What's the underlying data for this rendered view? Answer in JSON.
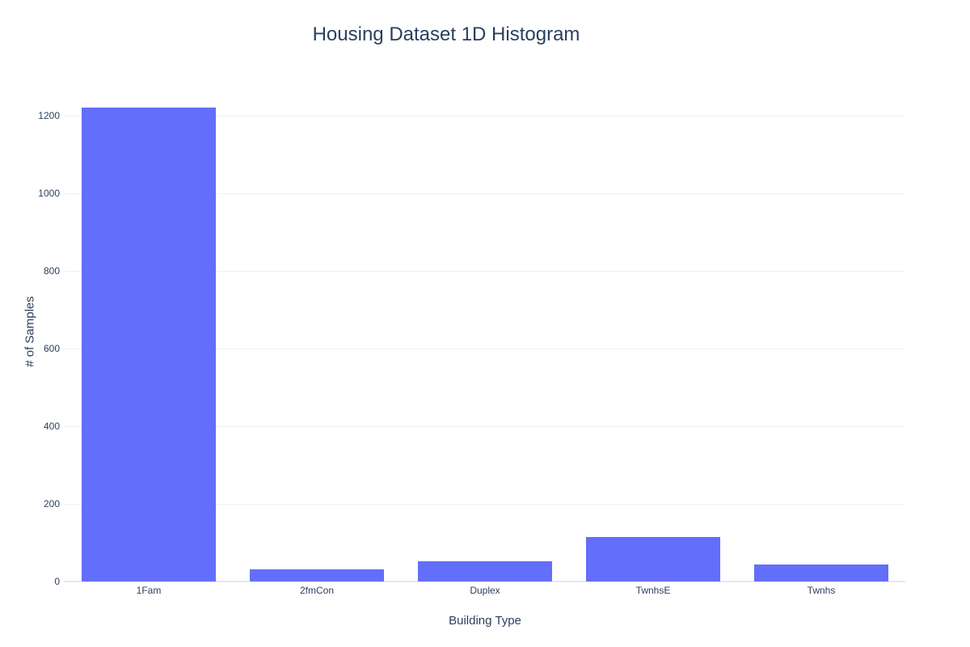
{
  "chart_data": {
    "type": "bar",
    "title": "Housing Dataset 1D Histogram",
    "xlabel": "Building Type",
    "ylabel": "# of Samples",
    "categories": [
      "1Fam",
      "2fmCon",
      "Duplex",
      "TwnhsE",
      "Twnhs"
    ],
    "values": [
      1220,
      31,
      52,
      114,
      43
    ],
    "yticks": [
      0,
      200,
      400,
      600,
      800,
      1000,
      1200
    ],
    "ylim": [
      0,
      1285
    ],
    "grid": true,
    "legend_position": "none",
    "bar_color": "#636efa",
    "colors": {
      "text": "#2a3f5f",
      "gridline": "#ebf0f8",
      "zeroline": "#e5e9f2",
      "background": "#ffffff"
    }
  }
}
